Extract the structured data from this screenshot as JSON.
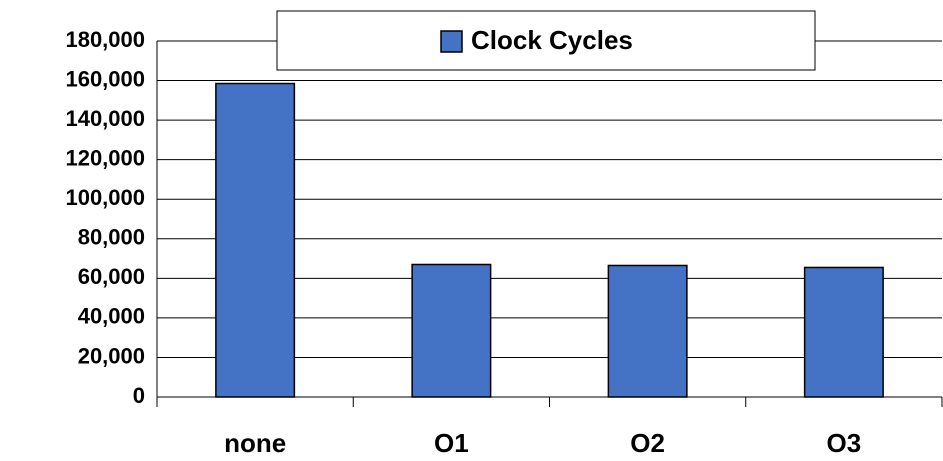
{
  "chart_data": {
    "type": "bar",
    "categories": [
      "none",
      "O1",
      "O2",
      "O3"
    ],
    "series": [
      {
        "name": "Clock Cycles",
        "color": "#4472c4",
        "values": [
          158500,
          67000,
          66500,
          65500
        ]
      }
    ],
    "ylim": [
      0,
      180000
    ],
    "yticks": [
      0,
      {
        "value": 20000,
        "label": "20,000"
      },
      {
        "value": 40000,
        "label": "40,000"
      },
      {
        "value": 60000,
        "label": "60,000"
      },
      {
        "value": 80000,
        "label": "80,000"
      },
      {
        "value": 100000,
        "label": "100,000"
      },
      {
        "value": 120000,
        "label": "120,000"
      },
      {
        "value": 140000,
        "label": "140,000"
      },
      {
        "value": 160000,
        "label": "160,000"
      },
      {
        "value": 180000,
        "label": "180,000"
      }
    ],
    "grid": true,
    "legend": "top"
  }
}
